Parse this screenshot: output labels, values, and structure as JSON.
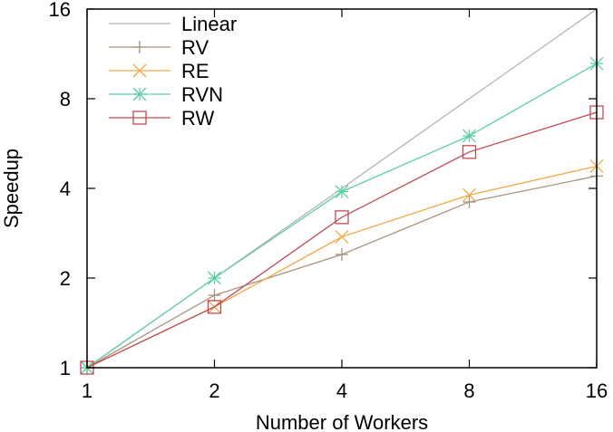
{
  "chart_data": {
    "type": "line",
    "title": "",
    "xlabel": "Number of Workers",
    "ylabel": "Speedup",
    "x_scale": "log2",
    "y_scale": "log2",
    "x": [
      1,
      2,
      4,
      8,
      16
    ],
    "xticks": [
      "1",
      "2",
      "4",
      "8",
      "16"
    ],
    "yticks": [
      "1",
      "2",
      "4",
      "8",
      "16"
    ],
    "xlim": [
      1,
      16
    ],
    "ylim": [
      1,
      16
    ],
    "grid": false,
    "legend_position": "top-left",
    "series": [
      {
        "name": "Linear",
        "color": "#b3b3b3",
        "marker": "none",
        "values": [
          1,
          2,
          4,
          8,
          16
        ]
      },
      {
        "name": "RV",
        "color": "#a8937e",
        "marker": "plus",
        "values": [
          1,
          1.75,
          2.4,
          3.6,
          4.4
        ]
      },
      {
        "name": "RE",
        "color": "#f2a94a",
        "marker": "x",
        "values": [
          1,
          1.6,
          2.75,
          3.8,
          4.75
        ]
      },
      {
        "name": "RVN",
        "color": "#5fcfa3",
        "marker": "asterisk",
        "values": [
          1,
          2.0,
          3.9,
          6.0,
          10.5
        ]
      },
      {
        "name": "RW",
        "color": "#c04a55",
        "marker": "square",
        "values": [
          1,
          1.6,
          3.2,
          5.3,
          7.2
        ]
      }
    ]
  }
}
